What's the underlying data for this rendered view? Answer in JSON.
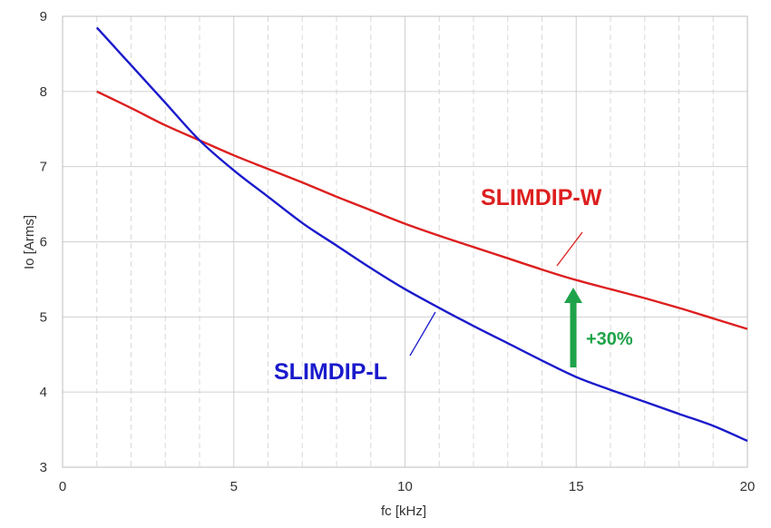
{
  "chart_data": {
    "type": "line",
    "title": "",
    "xlabel": "fc [kHz]",
    "ylabel": "Io [Arms]",
    "xlim": [
      0,
      20
    ],
    "ylim": [
      3,
      9
    ],
    "x_ticks": [
      0,
      5,
      10,
      15,
      20
    ],
    "y_ticks": [
      3,
      4,
      5,
      6,
      7,
      8,
      9
    ],
    "x_minor_step": 1,
    "grid": true,
    "series": [
      {
        "name": "SLIMDIP-W",
        "color": "#dd1f1f",
        "x": [
          1,
          2,
          3,
          4,
          5,
          6,
          7,
          8,
          9,
          10,
          11,
          12,
          13,
          14,
          15,
          16,
          17,
          18,
          19,
          20
        ],
        "y": [
          8.0,
          7.78,
          7.55,
          7.35,
          7.15,
          6.97,
          6.79,
          6.6,
          6.42,
          6.24,
          6.08,
          5.93,
          5.78,
          5.63,
          5.49,
          5.37,
          5.25,
          5.12,
          4.98,
          4.84
        ]
      },
      {
        "name": "SLIMDIP-L",
        "color": "#1a1acc",
        "x": [
          1,
          2,
          3,
          4,
          5,
          6,
          7,
          8,
          9,
          10,
          11,
          12,
          13,
          14,
          15,
          16,
          17,
          18,
          19,
          20
        ],
        "y": [
          8.85,
          8.35,
          7.85,
          7.35,
          6.95,
          6.6,
          6.25,
          5.95,
          5.65,
          5.37,
          5.12,
          4.88,
          4.65,
          4.42,
          4.2,
          4.03,
          3.87,
          3.71,
          3.55,
          3.35
        ]
      }
    ],
    "annotations": [
      {
        "text": "SLIMDIP-W",
        "color": "#dd1f1f"
      },
      {
        "text": "SLIMDIP-L",
        "color": "#1a1acc"
      },
      {
        "text": "+30%",
        "color": "#1fa34a",
        "arrow_x": 15,
        "arrow_from_y": 4.3,
        "arrow_to_y": 5.4
      }
    ]
  }
}
